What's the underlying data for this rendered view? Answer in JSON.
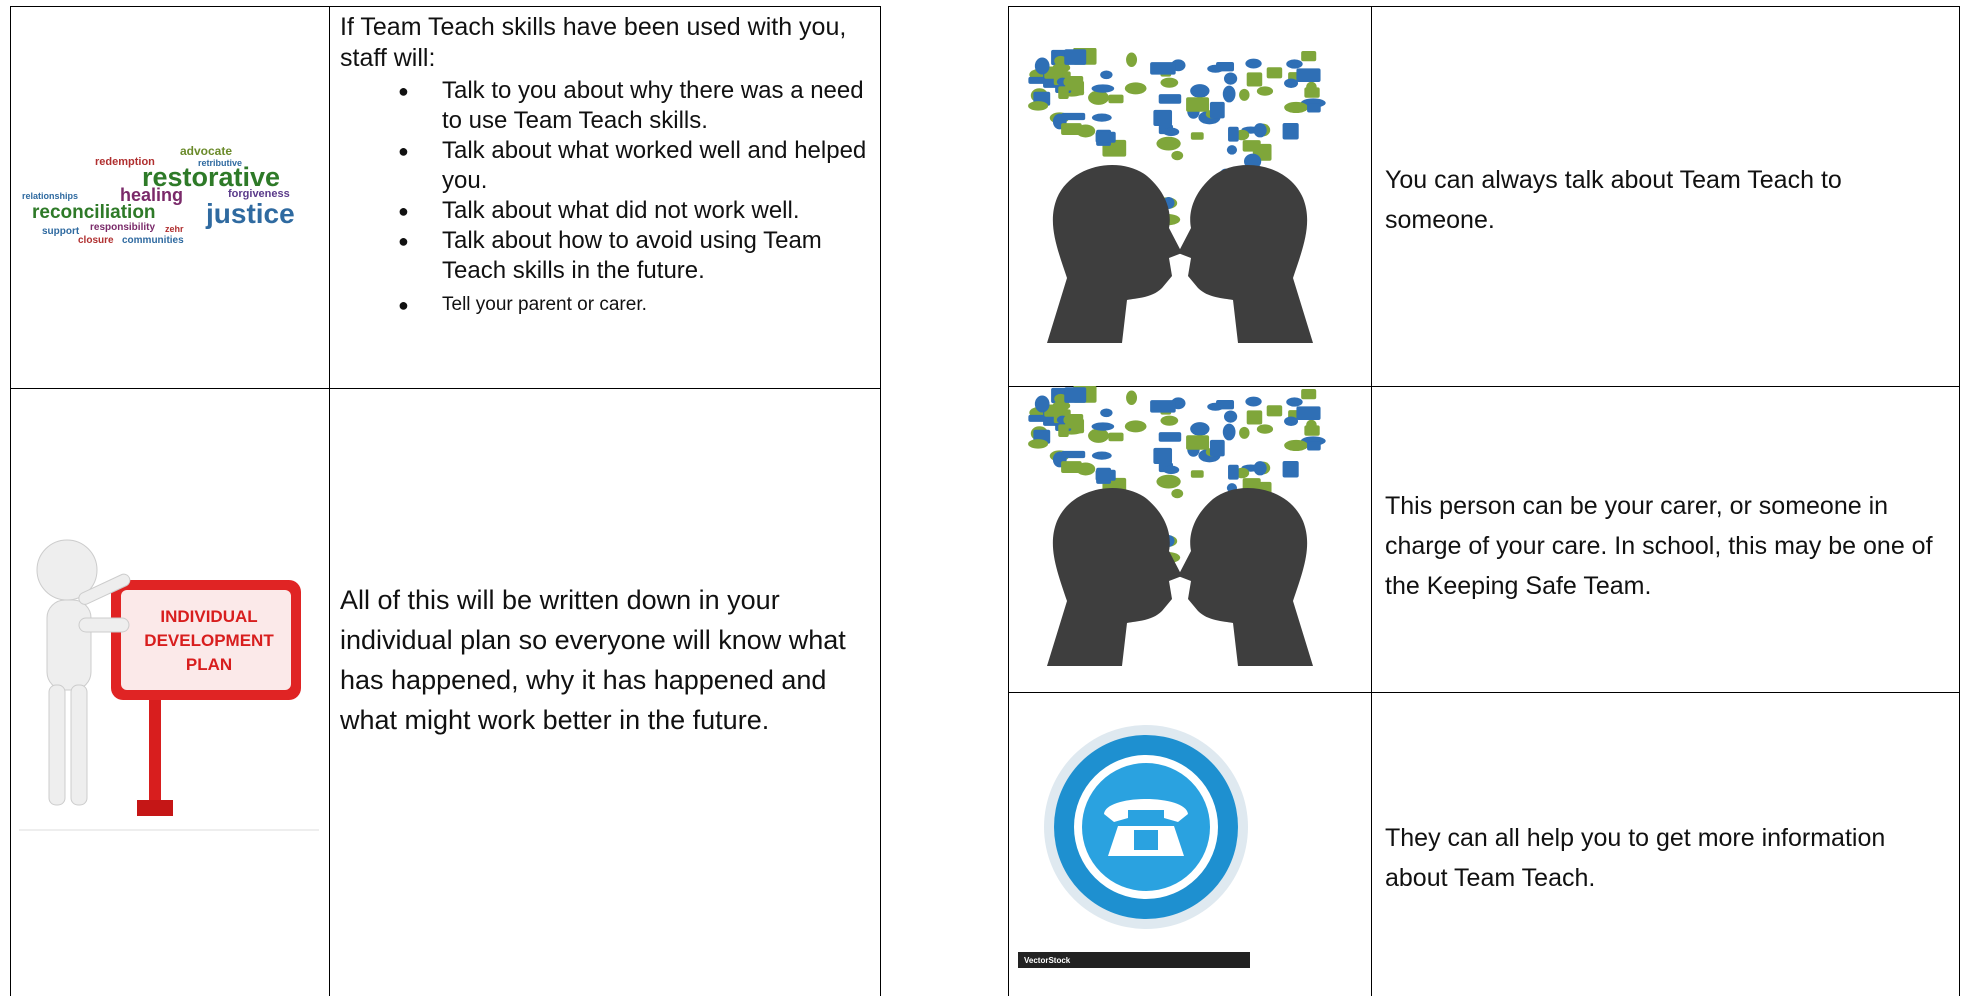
{
  "left_table": {
    "row_1": {
      "image_words": [
        "advocate",
        "retributive",
        "redemption",
        "restorative",
        "relationships",
        "healing",
        "forgiveness",
        "reconciliation",
        "justice",
        "support",
        "responsibility",
        "zehr",
        "closure",
        "communities"
      ],
      "intro": "If Team Teach skills have been used with you, staff will:",
      "bullets": [
        "Talk to you about why there was a need to use Team Teach skills.",
        "Talk about what worked well and helped you.",
        "Talk about what did not work well.",
        "Talk about how to avoid using Team Teach skills in the future.",
        "Tell your parent or carer."
      ]
    },
    "row_2": {
      "image_text": [
        "INDIVIDUAL",
        "DEVELOPMENT",
        "PLAN"
      ],
      "text": "All of this will be written down in your individual plan so everyone will know what has happened, why it has happened and what might work better in the future."
    }
  },
  "right_table": {
    "rows": [
      {
        "text": "You can always talk about Team Teach to someone."
      },
      {
        "text": "This person can be your carer, or someone in charge of your care. In school, this may be one of the Keeping Safe Team."
      },
      {
        "image_text": "VectorStock",
        "text": "They can all help you to get more information about Team Teach."
      }
    ]
  }
}
